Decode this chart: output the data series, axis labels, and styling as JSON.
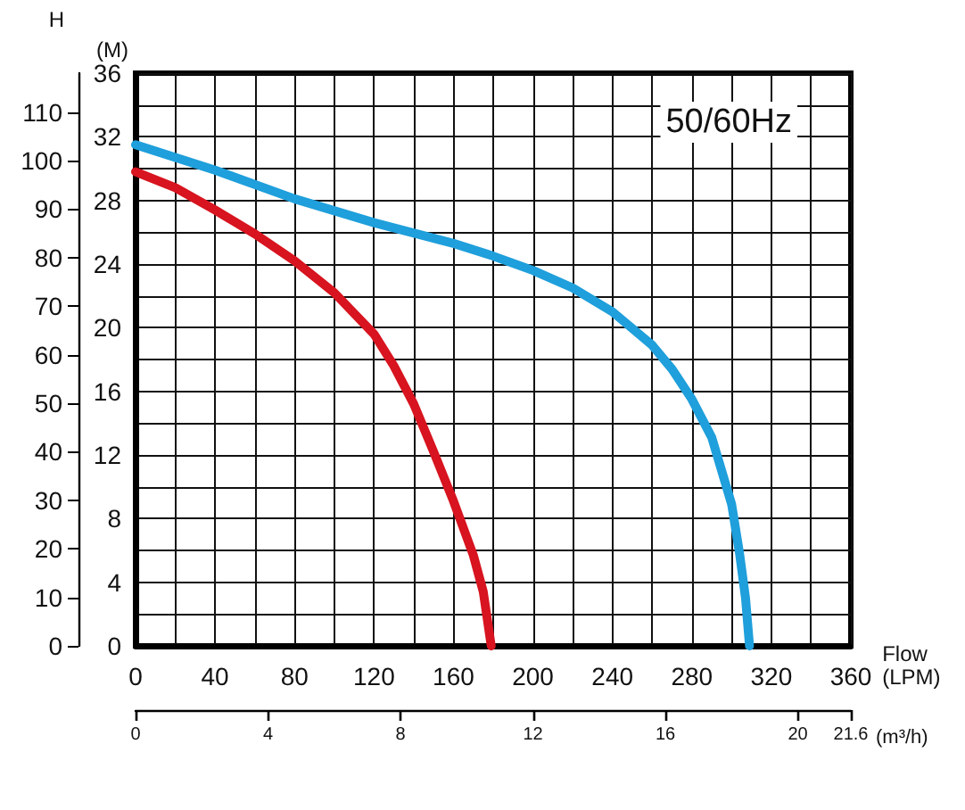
{
  "chart_data": {
    "type": "line",
    "xlabel": "Flow\n(LPM)",
    "ylabel": "(M)",
    "y2label": "H",
    "x2label": "(m³/h)",
    "annotations": [
      "50/60Hz"
    ],
    "series": [
      {
        "color": "#d7141f",
        "x": [
          0,
          20,
          40,
          60,
          80,
          100,
          120,
          130,
          140,
          150,
          160,
          170,
          175,
          179
        ],
        "values": [
          29.8,
          28.8,
          27.4,
          25.9,
          24.2,
          22.2,
          19.6,
          17.6,
          15.2,
          12.2,
          9.1,
          5.7,
          3.4,
          0
        ]
      },
      {
        "color": "#1f9fdb",
        "x": [
          0,
          20,
          40,
          80,
          120,
          160,
          180,
          200,
          220,
          240,
          260,
          270,
          280,
          290,
          300,
          304,
          307,
          309
        ],
        "values": [
          31.5,
          30.7,
          29.9,
          28.1,
          26.6,
          25.3,
          24.5,
          23.6,
          22.5,
          21.0,
          18.9,
          17.4,
          15.5,
          13.1,
          8.9,
          5.8,
          3.0,
          0
        ]
      }
    ],
    "xlim": [
      0,
      360
    ],
    "xticks": [
      0,
      {
        "value": 20,
        "label": null
      },
      40,
      {
        "value": 60,
        "label": null
      },
      80,
      {
        "value": 100,
        "label": null
      },
      120,
      {
        "value": 140,
        "label": null
      },
      160,
      {
        "value": 180,
        "label": null
      },
      200,
      {
        "value": 220,
        "label": null
      },
      240,
      {
        "value": 260,
        "label": null
      },
      280,
      {
        "value": 300,
        "label": null
      },
      320,
      {
        "value": 340,
        "label": null
      },
      360
    ],
    "ylim": [
      0,
      36
    ],
    "yticks": [
      0,
      {
        "value": 2,
        "label": null
      },
      4,
      {
        "value": 6,
        "label": null
      },
      8,
      {
        "value": 10,
        "label": null
      },
      12,
      {
        "value": 14,
        "label": null
      },
      16,
      {
        "value": 18,
        "label": null
      },
      20,
      {
        "value": 22,
        "label": null
      },
      24,
      {
        "value": 26,
        "label": null
      },
      28,
      {
        "value": 30,
        "label": null
      },
      32,
      {
        "value": 34,
        "label": null
      },
      36
    ],
    "y2lim": [
      0,
      118
    ],
    "y2ticks": [
      0,
      10,
      20,
      30,
      40,
      50,
      60,
      70,
      80,
      90,
      100,
      110
    ],
    "x2lim": [
      0,
      21.6
    ],
    "x2ticks": [
      0,
      4,
      8,
      12,
      16,
      20,
      21.6
    ],
    "grid": true,
    "marker": "none",
    "line_style": "solid"
  }
}
